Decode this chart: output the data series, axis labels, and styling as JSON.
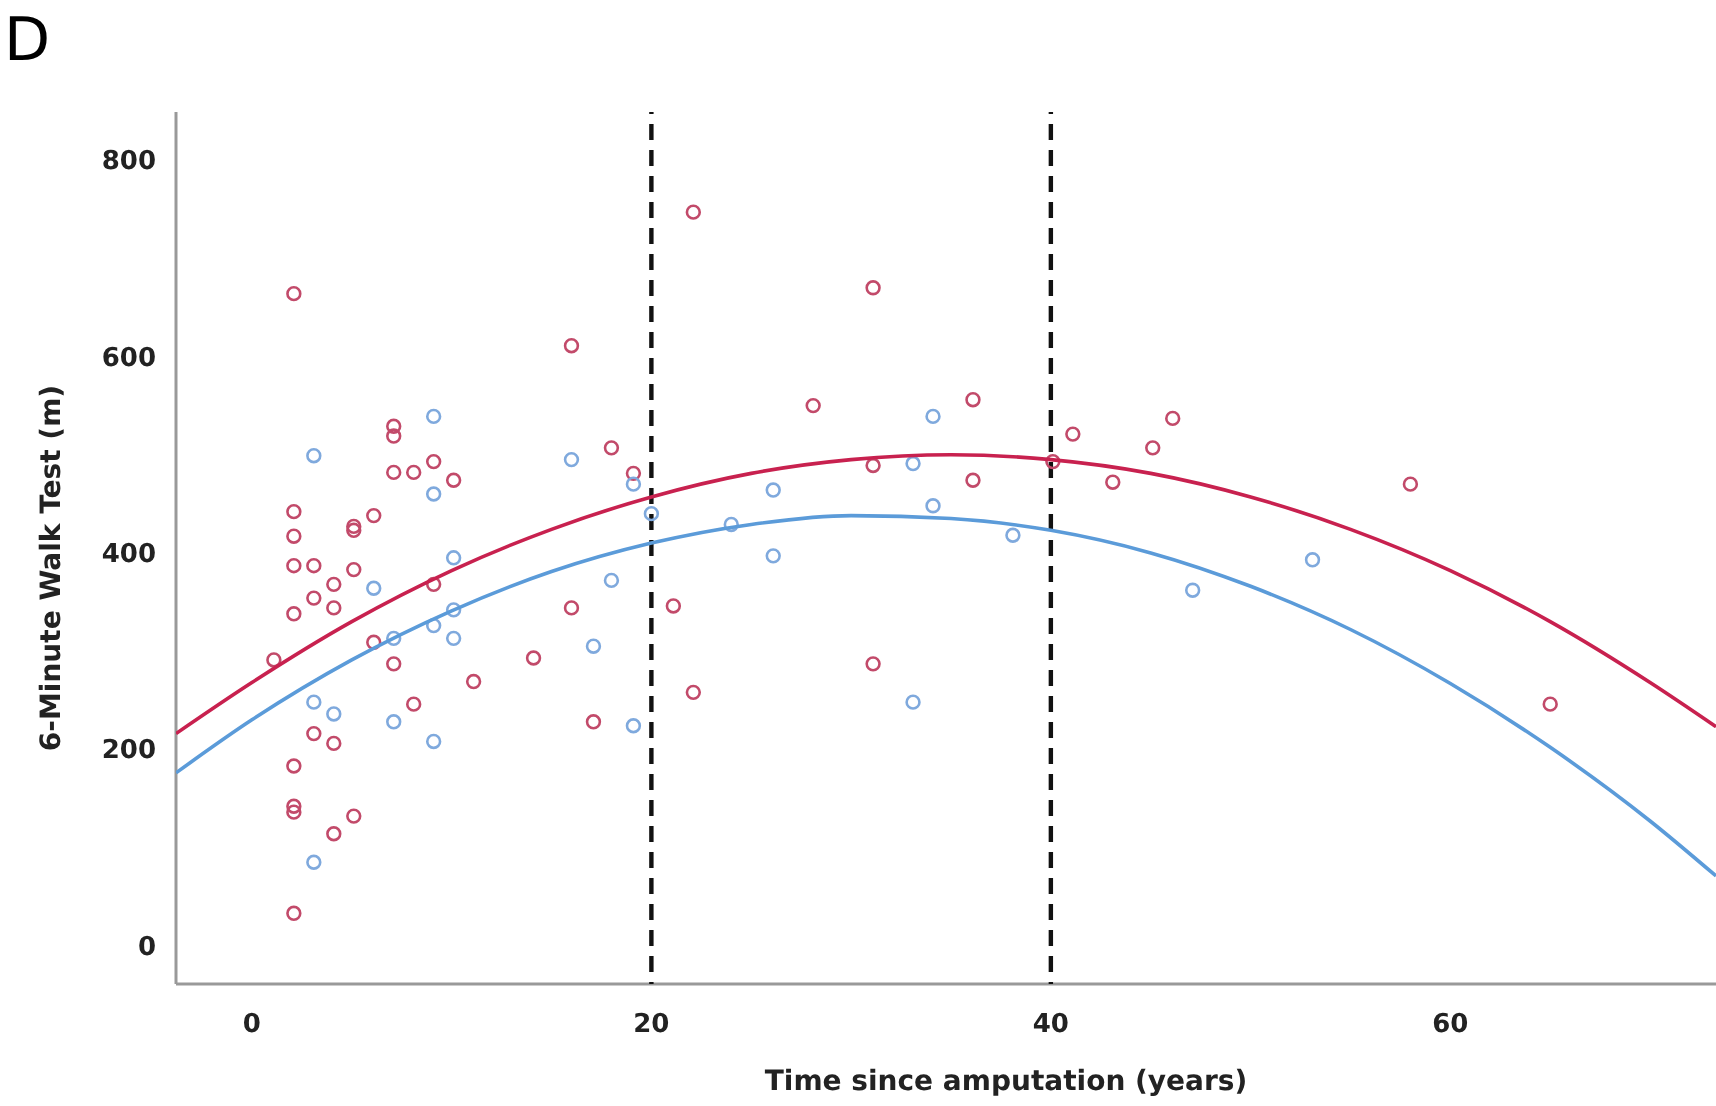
{
  "chart_data": {
    "type": "scatter",
    "title": "D",
    "xlabel": "Time since amputation (years)",
    "ylabel": "6-Minute Walk Test (m)",
    "xlim": [
      -3.8,
      73.3
    ],
    "ylim": [
      -39,
      849
    ],
    "xticks": [
      0,
      20,
      40,
      60
    ],
    "yticks": [
      0,
      200,
      400,
      600,
      800
    ],
    "grid": false,
    "series": [
      {
        "marker": "circle",
        "color": "#c24a6a",
        "x": [
          2.1,
          16,
          7.1,
          7.1,
          7.1,
          8.1,
          9.1,
          10.1,
          2.1,
          2.1,
          5.1,
          5.1,
          6.1,
          2.1,
          3.1,
          5.1,
          4.1,
          3.1,
          4.1,
          2.1,
          1.1,
          6.1,
          7.1,
          9.1,
          8.1,
          11.1,
          14.1,
          3.1,
          4.1,
          2.1,
          2.1,
          2.1,
          5.1,
          4.1,
          2.1,
          16,
          22.1,
          31.1,
          28.1,
          36.1,
          18,
          19.1,
          31.1,
          36.1,
          41.1,
          40.1,
          43.1,
          21.1,
          22.1,
          17.1,
          31.1,
          46.1,
          45.1,
          58,
          65
        ],
        "values": [
          664,
          611,
          529,
          519,
          482,
          482,
          493,
          474,
          442,
          417,
          427,
          423,
          438,
          387,
          387,
          383,
          368,
          354,
          344,
          338,
          291,
          309,
          287,
          368,
          246,
          269,
          293,
          216,
          206,
          183,
          136,
          142,
          132,
          114,
          33,
          344,
          747,
          670,
          550,
          556,
          507,
          481,
          489,
          474,
          521,
          493,
          472,
          346,
          258,
          228,
          287,
          537,
          507,
          470,
          246
        ]
      },
      {
        "marker": "circle",
        "color": "#7fa9dd",
        "x": [
          3.1,
          9.1,
          9.1,
          16,
          10.1,
          6.1,
          10.1,
          7.1,
          10.1,
          9.1,
          3.1,
          4.1,
          7.1,
          9.1,
          3.1,
          19.1,
          20,
          18,
          17.1,
          19.1,
          24,
          26.1,
          26.1,
          33.1,
          34.1,
          34.1,
          38.1,
          33.1,
          47.1,
          53.1
        ],
        "values": [
          499,
          539,
          460,
          495,
          395,
          364,
          342,
          313,
          313,
          326,
          248,
          236,
          228,
          208,
          85,
          470,
          440,
          372,
          305,
          224,
          429,
          464,
          397,
          491,
          539,
          448,
          418,
          248,
          362,
          393
        ]
      },
      {
        "type": "line",
        "marker": "none",
        "color": "#c8214f",
        "x": [
          -3.8,
          0,
          5,
          10,
          15,
          20,
          25,
          30,
          35,
          40,
          45,
          50,
          55,
          60,
          65,
          70,
          73.3
        ],
        "values": [
          216,
          268,
          330,
          382,
          424,
          457,
          481,
          495,
          500,
          495,
          481,
          457,
          424,
          382,
          330,
          268,
          223
        ]
      },
      {
        "type": "line",
        "marker": "none",
        "color": "#5b9bd9",
        "x": [
          -3.8,
          0,
          5,
          10,
          15,
          20,
          25,
          30,
          35,
          40,
          45,
          50,
          55,
          60,
          65,
          70,
          73.3
        ],
        "values": [
          176,
          230,
          291,
          341,
          381,
          410,
          429,
          438,
          435,
          423,
          400,
          366,
          322,
          267,
          202,
          127,
          71
        ]
      }
    ],
    "ref_lines": [
      {
        "axis": "x",
        "value": 20,
        "color": "#111111",
        "line_style": "dashed"
      },
      {
        "axis": "x",
        "value": 40,
        "color": "#111111",
        "line_style": "dashed"
      }
    ]
  }
}
